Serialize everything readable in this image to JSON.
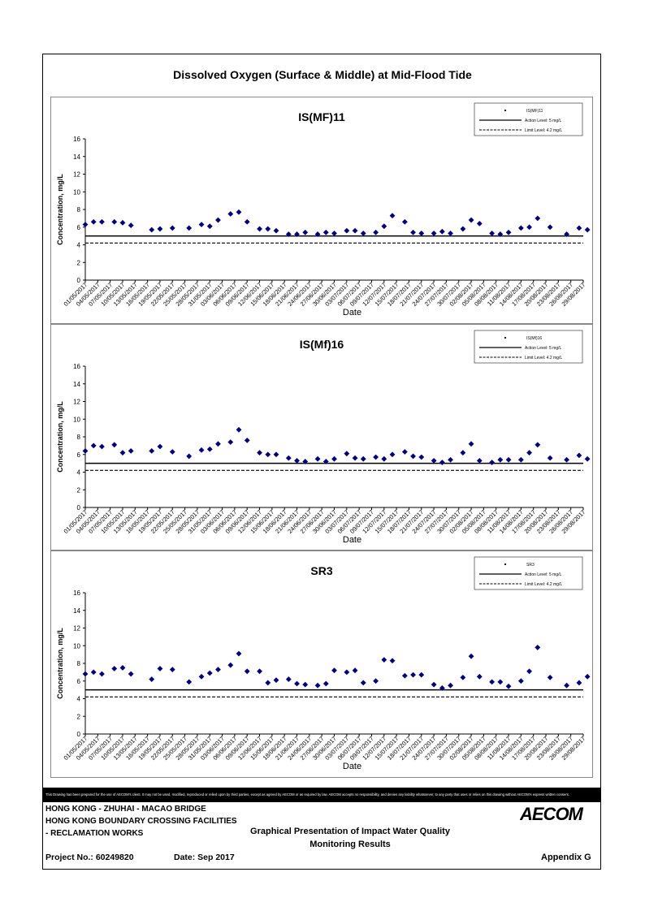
{
  "page_title": "Dissolved Oxygen (Surface & Middle) at Mid-Flood Tide",
  "disclaimer": "This Drawing has been prepared for the use of AECOM's client. It may not be used, modified, reproduced or relied upon by third parties, except as agreed by AECOM or as required by law. AECOM accepts no responsibility, and denies any liability whatsoever, to any party that uses or relies on this drawing without AECOM's express written consent.",
  "title_block": {
    "line1": "HONG KONG - ZHUHAI - MACAO BRIDGE",
    "line2": "HONG KONG BOUNDARY CROSSING FACILITIES",
    "line3": "- RECLAMATION WORKS",
    "heading1": "Graphical Presentation of Impact Water Quality",
    "heading2": "Monitoring Results",
    "project": "Project No.: 60249820",
    "date": "Date: Sep 2017",
    "appendix": "Appendix G",
    "logo_text": "AECOM"
  },
  "colors": {
    "marker": "#000080",
    "line": "#000000",
    "panel_border": "#888888"
  },
  "chart_data": [
    {
      "type": "scatter",
      "title": "IS(MF)11",
      "xlabel": "Date",
      "ylabel": "Concentration, mg/L",
      "ylim": [
        0,
        16
      ],
      "yticks": [
        "0",
        "2",
        "4",
        "6",
        "8",
        "10",
        "12",
        "14",
        "16"
      ],
      "xticks": [
        "01/05/2017",
        "04/05/2017",
        "07/05/2017",
        "10/05/2017",
        "13/05/2017",
        "16/05/2017",
        "19/05/2017",
        "22/05/2017",
        "25/05/2017",
        "28/05/2017",
        "31/05/2017",
        "03/06/2017",
        "06/06/2017",
        "09/06/2017",
        "12/06/2017",
        "15/06/2017",
        "18/06/2017",
        "21/06/2017",
        "24/06/2017",
        "27/06/2017",
        "30/06/2017",
        "03/07/2017",
        "06/07/2017",
        "09/07/2017",
        "12/07/2017",
        "15/07/2017",
        "18/07/2017",
        "21/07/2017",
        "24/07/2017",
        "27/07/2017",
        "30/07/2017",
        "02/08/2017",
        "05/08/2017",
        "08/08/2017",
        "11/08/2017",
        "14/08/2017",
        "17/08/2017",
        "20/08/2017",
        "23/08/2017",
        "26/08/2017",
        "29/08/2017"
      ],
      "legend": [
        "IS(MF)11",
        "Action Level: 5 mg/L",
        "Limit Level: 4.2 mg/L"
      ],
      "legend_position": "top-right",
      "action_level": 5,
      "limit_level": 4.2,
      "series": [
        {
          "name": "IS(MF)11",
          "points": [
            [
              "01/05/2017",
              6.3
            ],
            [
              "03/05/2017",
              6.6
            ],
            [
              "05/05/2017",
              6.6
            ],
            [
              "08/05/2017",
              6.6
            ],
            [
              "10/05/2017",
              6.5
            ],
            [
              "12/05/2017",
              6.2
            ],
            [
              "17/05/2017",
              5.7
            ],
            [
              "19/05/2017",
              5.8
            ],
            [
              "22/05/2017",
              5.9
            ],
            [
              "26/05/2017",
              5.9
            ],
            [
              "29/05/2017",
              6.3
            ],
            [
              "31/05/2017",
              6.1
            ],
            [
              "02/06/2017",
              6.8
            ],
            [
              "05/06/2017",
              7.5
            ],
            [
              "07/06/2017",
              7.7
            ],
            [
              "09/06/2017",
              6.6
            ],
            [
              "12/06/2017",
              5.8
            ],
            [
              "14/06/2017",
              5.8
            ],
            [
              "16/06/2017",
              5.6
            ],
            [
              "19/06/2017",
              5.2
            ],
            [
              "21/06/2017",
              5.2
            ],
            [
              "23/06/2017",
              5.4
            ],
            [
              "26/06/2017",
              5.2
            ],
            [
              "28/06/2017",
              5.4
            ],
            [
              "30/06/2017",
              5.3
            ],
            [
              "03/07/2017",
              5.6
            ],
            [
              "05/07/2017",
              5.6
            ],
            [
              "07/07/2017",
              5.3
            ],
            [
              "10/07/2017",
              5.4
            ],
            [
              "12/07/2017",
              6.1
            ],
            [
              "14/07/2017",
              7.3
            ],
            [
              "17/07/2017",
              6.6
            ],
            [
              "19/07/2017",
              5.4
            ],
            [
              "21/07/2017",
              5.3
            ],
            [
              "24/07/2017",
              5.3
            ],
            [
              "26/07/2017",
              5.5
            ],
            [
              "28/07/2017",
              5.3
            ],
            [
              "31/07/2017",
              5.8
            ],
            [
              "02/08/2017",
              6.8
            ],
            [
              "04/08/2017",
              6.4
            ],
            [
              "07/08/2017",
              5.3
            ],
            [
              "09/08/2017",
              5.2
            ],
            [
              "11/08/2017",
              5.4
            ],
            [
              "14/08/2017",
              5.9
            ],
            [
              "16/08/2017",
              6.0
            ],
            [
              "18/08/2017",
              7.0
            ],
            [
              "21/08/2017",
              6.0
            ],
            [
              "25/08/2017",
              5.2
            ],
            [
              "28/08/2017",
              5.9
            ],
            [
              "30/08/2017",
              5.7
            ]
          ]
        }
      ]
    },
    {
      "type": "scatter",
      "title": "IS(Mf)16",
      "xlabel": "Date",
      "ylabel": "Concentration, mg/L",
      "ylim": [
        0,
        16
      ],
      "yticks": [
        "0",
        "2",
        "4",
        "6",
        "8",
        "10",
        "12",
        "14",
        "16"
      ],
      "xticks": [
        "01/05/2017",
        "04/05/2017",
        "07/05/2017",
        "10/05/2017",
        "13/05/2017",
        "16/05/2017",
        "19/05/2017",
        "22/05/2017",
        "25/05/2017",
        "28/05/2017",
        "31/05/2017",
        "03/06/2017",
        "06/06/2017",
        "09/06/2017",
        "12/06/2017",
        "15/06/2017",
        "18/06/2017",
        "21/06/2017",
        "24/06/2017",
        "27/06/2017",
        "30/06/2017",
        "03/07/2017",
        "06/07/2017",
        "09/07/2017",
        "12/07/2017",
        "15/07/2017",
        "18/07/2017",
        "21/07/2017",
        "24/07/2017",
        "27/07/2017",
        "30/07/2017",
        "02/08/2017",
        "05/08/2017",
        "08/08/2017",
        "11/08/2017",
        "14/08/2017",
        "17/08/2017",
        "20/08/2017",
        "23/08/2017",
        "26/08/2017",
        "29/08/2017"
      ],
      "legend": [
        "IS(Mf)16",
        "Action Level: 5 mg/L",
        "Limit Level: 4.2 mg/L"
      ],
      "legend_position": "top-right",
      "action_level": 5,
      "limit_level": 4.2,
      "series": [
        {
          "name": "IS(Mf)16",
          "points": [
            [
              "01/05/2017",
              6.4
            ],
            [
              "03/05/2017",
              7.0
            ],
            [
              "05/05/2017",
              6.9
            ],
            [
              "08/05/2017",
              7.1
            ],
            [
              "10/05/2017",
              6.2
            ],
            [
              "12/05/2017",
              6.4
            ],
            [
              "17/05/2017",
              6.4
            ],
            [
              "19/05/2017",
              6.9
            ],
            [
              "22/05/2017",
              6.3
            ],
            [
              "26/05/2017",
              5.8
            ],
            [
              "29/05/2017",
              6.5
            ],
            [
              "31/05/2017",
              6.6
            ],
            [
              "02/06/2017",
              7.2
            ],
            [
              "05/06/2017",
              7.4
            ],
            [
              "07/06/2017",
              8.8
            ],
            [
              "09/06/2017",
              7.6
            ],
            [
              "12/06/2017",
              6.2
            ],
            [
              "14/06/2017",
              6.0
            ],
            [
              "16/06/2017",
              6.0
            ],
            [
              "19/06/2017",
              5.6
            ],
            [
              "21/06/2017",
              5.3
            ],
            [
              "23/06/2017",
              5.2
            ],
            [
              "26/06/2017",
              5.5
            ],
            [
              "28/06/2017",
              5.2
            ],
            [
              "30/06/2017",
              5.5
            ],
            [
              "03/07/2017",
              6.1
            ],
            [
              "05/07/2017",
              5.6
            ],
            [
              "07/07/2017",
              5.5
            ],
            [
              "10/07/2017",
              5.7
            ],
            [
              "12/07/2017",
              5.5
            ],
            [
              "14/07/2017",
              6.0
            ],
            [
              "17/07/2017",
              6.3
            ],
            [
              "19/07/2017",
              5.8
            ],
            [
              "21/07/2017",
              5.7
            ],
            [
              "24/07/2017",
              5.3
            ],
            [
              "26/07/2017",
              5.1
            ],
            [
              "28/07/2017",
              5.4
            ],
            [
              "31/07/2017",
              6.2
            ],
            [
              "02/08/2017",
              7.2
            ],
            [
              "04/08/2017",
              5.3
            ],
            [
              "07/08/2017",
              5.1
            ],
            [
              "09/08/2017",
              5.4
            ],
            [
              "11/08/2017",
              5.4
            ],
            [
              "14/08/2017",
              5.4
            ],
            [
              "16/08/2017",
              6.2
            ],
            [
              "18/08/2017",
              7.1
            ],
            [
              "21/08/2017",
              5.6
            ],
            [
              "25/08/2017",
              5.4
            ],
            [
              "28/08/2017",
              5.9
            ],
            [
              "30/08/2017",
              5.5
            ]
          ]
        }
      ]
    },
    {
      "type": "scatter",
      "title": "SR3",
      "xlabel": "Date",
      "ylabel": "Concentration, mg/L",
      "ylim": [
        0,
        16
      ],
      "yticks": [
        "0",
        "2",
        "4",
        "6",
        "8",
        "10",
        "12",
        "14",
        "16"
      ],
      "xticks": [
        "01/05/2017",
        "04/05/2017",
        "07/05/2017",
        "10/05/2017",
        "13/05/2017",
        "16/05/2017",
        "19/05/2017",
        "22/05/2017",
        "25/05/2017",
        "28/05/2017",
        "31/05/2017",
        "03/06/2017",
        "06/06/2017",
        "09/06/2017",
        "12/06/2017",
        "15/06/2017",
        "18/06/2017",
        "21/06/2017",
        "24/06/2017",
        "27/06/2017",
        "30/06/2017",
        "03/07/2017",
        "06/07/2017",
        "09/07/2017",
        "12/07/2017",
        "15/07/2017",
        "18/07/2017",
        "21/07/2017",
        "24/07/2017",
        "27/07/2017",
        "30/07/2017",
        "02/08/2017",
        "05/08/2017",
        "08/08/2017",
        "11/08/2017",
        "14/08/2017",
        "17/08/2017",
        "20/08/2017",
        "23/08/2017",
        "26/08/2017",
        "29/08/2017"
      ],
      "legend": [
        "SR3",
        "Action Level: 5 mg/L",
        "Limit Level: 4.2 mg/L"
      ],
      "legend_position": "top-right",
      "action_level": 5,
      "limit_level": 4.2,
      "series": [
        {
          "name": "SR3",
          "points": [
            [
              "01/05/2017",
              6.8
            ],
            [
              "03/05/2017",
              7.0
            ],
            [
              "05/05/2017",
              6.8
            ],
            [
              "08/05/2017",
              7.4
            ],
            [
              "10/05/2017",
              7.5
            ],
            [
              "12/05/2017",
              6.8
            ],
            [
              "17/05/2017",
              6.2
            ],
            [
              "19/05/2017",
              7.4
            ],
            [
              "22/05/2017",
              7.3
            ],
            [
              "26/05/2017",
              5.9
            ],
            [
              "29/05/2017",
              6.5
            ],
            [
              "31/05/2017",
              6.9
            ],
            [
              "02/06/2017",
              7.3
            ],
            [
              "05/06/2017",
              7.8
            ],
            [
              "07/06/2017",
              9.1
            ],
            [
              "09/06/2017",
              7.1
            ],
            [
              "12/06/2017",
              7.1
            ],
            [
              "14/06/2017",
              5.8
            ],
            [
              "16/06/2017",
              6.1
            ],
            [
              "19/06/2017",
              6.2
            ],
            [
              "21/06/2017",
              5.7
            ],
            [
              "23/06/2017",
              5.6
            ],
            [
              "26/06/2017",
              5.5
            ],
            [
              "28/06/2017",
              5.7
            ],
            [
              "30/06/2017",
              7.2
            ],
            [
              "03/07/2017",
              7.0
            ],
            [
              "05/07/2017",
              7.2
            ],
            [
              "07/07/2017",
              5.8
            ],
            [
              "10/07/2017",
              6.0
            ],
            [
              "12/07/2017",
              8.4
            ],
            [
              "14/07/2017",
              8.3
            ],
            [
              "17/07/2017",
              6.6
            ],
            [
              "19/07/2017",
              6.7
            ],
            [
              "21/07/2017",
              6.7
            ],
            [
              "24/07/2017",
              5.6
            ],
            [
              "26/07/2017",
              5.2
            ],
            [
              "28/07/2017",
              5.5
            ],
            [
              "31/07/2017",
              6.4
            ],
            [
              "02/08/2017",
              8.8
            ],
            [
              "04/08/2017",
              6.5
            ],
            [
              "07/08/2017",
              5.9
            ],
            [
              "09/08/2017",
              5.9
            ],
            [
              "11/08/2017",
              5.4
            ],
            [
              "14/08/2017",
              6.0
            ],
            [
              "16/08/2017",
              7.1
            ],
            [
              "18/08/2017",
              9.8
            ],
            [
              "21/08/2017",
              6.4
            ],
            [
              "25/08/2017",
              5.5
            ],
            [
              "28/08/2017",
              5.8
            ],
            [
              "30/08/2017",
              6.5
            ]
          ]
        }
      ]
    }
  ]
}
